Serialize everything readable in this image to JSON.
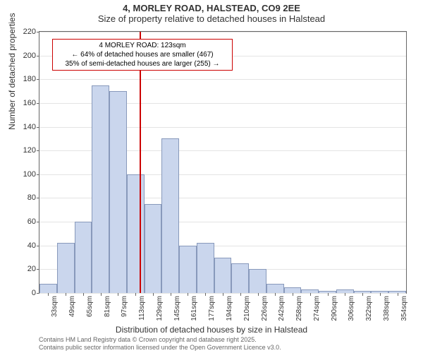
{
  "chart": {
    "type": "histogram",
    "title": "4, MORLEY ROAD, HALSTEAD, CO9 2EE",
    "subtitle": "Size of property relative to detached houses in Halstead",
    "x_axis_title": "Distribution of detached houses by size in Halstead",
    "y_axis_title": "Number of detached properties",
    "background_color": "#ffffff",
    "border_color": "#666666",
    "grid_color": "#e4e4e4",
    "bar_fill": "#cad6ed",
    "bar_border": "#8899bb",
    "marker_color": "#cc0000",
    "ylim": [
      0,
      220
    ],
    "y_ticks": [
      0,
      20,
      40,
      60,
      80,
      100,
      120,
      140,
      160,
      180,
      200,
      220
    ],
    "x_tick_labels": [
      "33sqm",
      "49sqm",
      "65sqm",
      "81sqm",
      "97sqm",
      "113sqm",
      "129sqm",
      "145sqm",
      "161sqm",
      "177sqm",
      "194sqm",
      "210sqm",
      "226sqm",
      "242sqm",
      "258sqm",
      "274sqm",
      "290sqm",
      "306sqm",
      "322sqm",
      "338sqm",
      "354sqm"
    ],
    "bars": [
      8,
      42,
      60,
      175,
      170,
      100,
      75,
      130,
      40,
      42,
      30,
      25,
      20,
      8,
      5,
      3,
      2,
      3,
      2,
      2,
      2
    ],
    "marker": {
      "x_value_sqm": 123,
      "x_range_sqm": [
        33,
        362
      ],
      "box_lines": [
        "4 MORLEY ROAD: 123sqm",
        "← 64% of detached houses are smaller (467)",
        "35% of semi-detached houses are larger (255) →"
      ]
    },
    "footer_lines": [
      "Contains HM Land Registry data © Crown copyright and database right 2025.",
      "Contains public sector information licensed under the Open Government Licence v3.0."
    ],
    "title_fontsize": 13,
    "label_fontsize": 12,
    "tick_fontsize": 11
  }
}
